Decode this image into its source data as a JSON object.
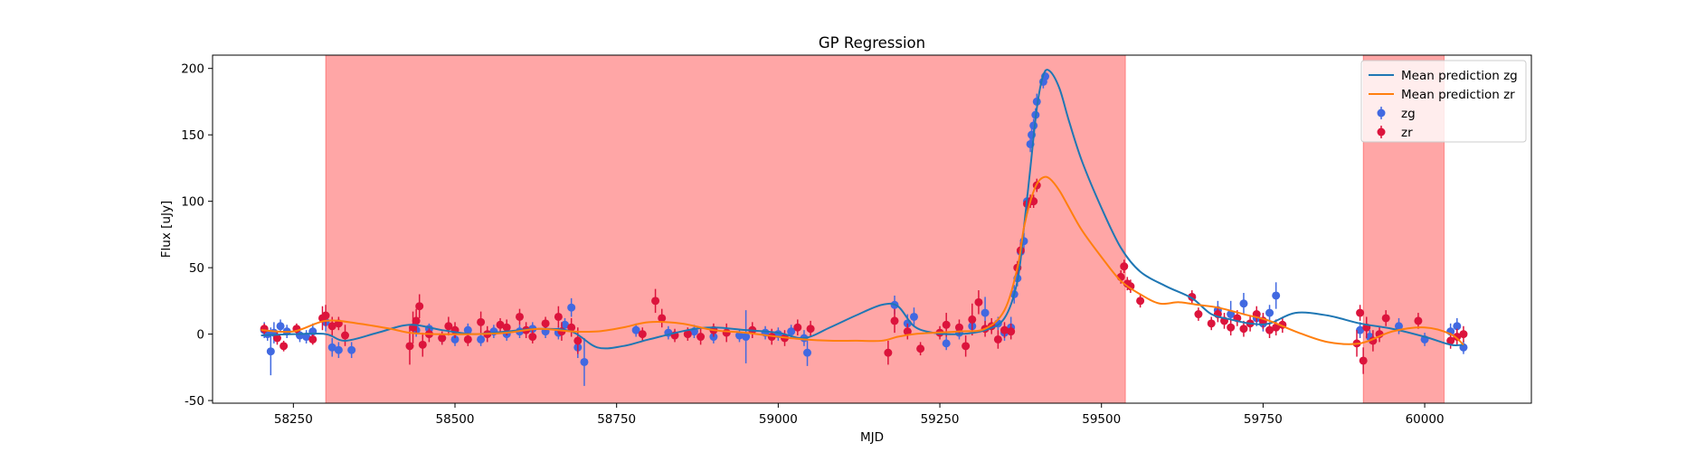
{
  "chart_data": {
    "type": "scatter",
    "title": "GP Regression",
    "xlabel": "MJD",
    "ylabel": "Flux [uJy]",
    "xlim": [
      58125,
      60165
    ],
    "ylim": [
      -52,
      210
    ],
    "xticks": [
      58250,
      58500,
      58750,
      59000,
      59250,
      59500,
      59750,
      60000
    ],
    "yticks": [
      -50,
      0,
      50,
      100,
      150,
      200
    ],
    "legend_location": "top-right",
    "shaded_regions": [
      {
        "x_start": 58300,
        "x_end": 59537,
        "color": "#ff0000",
        "alpha": 0.35
      },
      {
        "x_start": 59905,
        "x_end": 60030,
        "color": "#ff0000",
        "alpha": 0.35
      }
    ],
    "series": [
      {
        "name": "Mean prediction zg",
        "kind": "line",
        "color": "#1f77b4",
        "x": [
          58200,
          58250,
          58300,
          58330,
          58380,
          58430,
          58480,
          58530,
          58580,
          58630,
          58680,
          58720,
          58760,
          58800,
          58860,
          58900,
          58950,
          59000,
          59040,
          59080,
          59120,
          59160,
          59185,
          59210,
          59240,
          59280,
          59320,
          59350,
          59370,
          59380,
          59390,
          59400,
          59410,
          59420,
          59435,
          59450,
          59470,
          59500,
          59530,
          59560,
          59600,
          59640,
          59670,
          59700,
          59730,
          59760,
          59800,
          59850,
          59900,
          59950,
          60000,
          60040,
          60060
        ],
        "y": [
          -1,
          0,
          0,
          -5,
          1,
          7,
          3,
          0,
          2,
          4,
          2,
          -10,
          -9,
          -4,
          3,
          5,
          3,
          1,
          -3,
          5,
          14,
          22,
          21,
          6,
          1,
          0,
          3,
          12,
          40,
          80,
          125,
          170,
          195,
          198,
          185,
          160,
          130,
          95,
          65,
          47,
          36,
          27,
          15,
          11,
          8,
          8,
          16,
          14,
          8,
          4,
          -2,
          -8,
          -8
        ]
      },
      {
        "name": "Mean prediction zr",
        "kind": "line",
        "color": "#ff7f0e",
        "x": [
          58200,
          58250,
          58300,
          58350,
          58400,
          58430,
          58470,
          58530,
          58580,
          58630,
          58680,
          58720,
          58760,
          58800,
          58850,
          58900,
          58950,
          59000,
          59040,
          59080,
          59120,
          59160,
          59185,
          59210,
          59240,
          59280,
          59320,
          59350,
          59370,
          59380,
          59390,
          59400,
          59410,
          59420,
          59435,
          59450,
          59470,
          59500,
          59530,
          59560,
          59590,
          59620,
          59650,
          59680,
          59720,
          59760,
          59800,
          59850,
          59900,
          59950,
          60000,
          60040,
          60060
        ],
        "y": [
          3,
          2,
          10,
          8,
          4,
          1,
          0,
          0,
          1,
          4,
          2,
          2,
          5,
          9,
          8,
          3,
          1,
          -2,
          -4,
          -5,
          -5,
          -5,
          -2,
          0,
          1,
          2,
          4,
          18,
          50,
          80,
          100,
          113,
          118,
          117,
          108,
          95,
          78,
          58,
          40,
          30,
          23,
          24,
          22,
          20,
          15,
          10,
          2,
          -6,
          -7,
          2,
          5,
          0,
          -8
        ]
      },
      {
        "name": "zg",
        "kind": "errorbar",
        "color": "#4169e1",
        "points": [
          [
            58205,
            3,
            6
          ],
          [
            58210,
            0,
            5
          ],
          [
            58215,
            -13,
            18
          ],
          [
            58220,
            1,
            8
          ],
          [
            58230,
            6,
            5
          ],
          [
            58240,
            2,
            5
          ],
          [
            58260,
            -1,
            5
          ],
          [
            58270,
            -2,
            5
          ],
          [
            58280,
            2,
            6
          ],
          [
            58300,
            9,
            7
          ],
          [
            58310,
            -10,
            7
          ],
          [
            58320,
            -12,
            6
          ],
          [
            58340,
            -12,
            6
          ],
          [
            58440,
            3,
            5
          ],
          [
            58460,
            4,
            4
          ],
          [
            58480,
            -3,
            5
          ],
          [
            58500,
            -4,
            5
          ],
          [
            58520,
            3,
            5
          ],
          [
            58540,
            -4,
            5
          ],
          [
            58560,
            2,
            5
          ],
          [
            58580,
            0,
            5
          ],
          [
            58600,
            2,
            5
          ],
          [
            58620,
            4,
            5
          ],
          [
            58640,
            2,
            5
          ],
          [
            58660,
            1,
            5
          ],
          [
            58670,
            7,
            5
          ],
          [
            58680,
            20,
            7
          ],
          [
            58690,
            -10,
            8
          ],
          [
            58700,
            -21,
            18
          ],
          [
            58780,
            3,
            5
          ],
          [
            58830,
            1,
            5
          ],
          [
            58870,
            2,
            5
          ],
          [
            58900,
            -2,
            5
          ],
          [
            58940,
            -1,
            5
          ],
          [
            58950,
            -2,
            20
          ],
          [
            58980,
            1,
            5
          ],
          [
            59000,
            0,
            5
          ],
          [
            59020,
            2,
            5
          ],
          [
            59040,
            -3,
            6
          ],
          [
            59045,
            -14,
            10
          ],
          [
            59180,
            22,
            7
          ],
          [
            59200,
            8,
            7
          ],
          [
            59210,
            13,
            7
          ],
          [
            59260,
            -7,
            5
          ],
          [
            59280,
            1,
            5
          ],
          [
            59300,
            6,
            6
          ],
          [
            59320,
            16,
            12
          ],
          [
            59340,
            8,
            5
          ],
          [
            59350,
            1,
            6
          ],
          [
            59360,
            5,
            8
          ],
          [
            59365,
            30,
            7
          ],
          [
            59370,
            42,
            6
          ],
          [
            59375,
            62,
            6
          ],
          [
            59380,
            70,
            6
          ],
          [
            59385,
            100,
            5
          ],
          [
            59390,
            143,
            6
          ],
          [
            59392,
            150,
            5
          ],
          [
            59395,
            157,
            5
          ],
          [
            59398,
            165,
            5
          ],
          [
            59400,
            175,
            6
          ],
          [
            59410,
            190,
            5
          ],
          [
            59413,
            194,
            5
          ],
          [
            59640,
            28,
            4
          ],
          [
            59680,
            18,
            7
          ],
          [
            59700,
            15,
            10
          ],
          [
            59720,
            23,
            8
          ],
          [
            59740,
            12,
            6
          ],
          [
            59750,
            8,
            6
          ],
          [
            59760,
            16,
            6
          ],
          [
            59770,
            29,
            10
          ],
          [
            59900,
            3,
            6
          ],
          [
            59915,
            -2,
            5
          ],
          [
            59960,
            6,
            6
          ],
          [
            60000,
            -4,
            5
          ],
          [
            60040,
            2,
            6
          ],
          [
            60050,
            6,
            6
          ],
          [
            60060,
            -10,
            5
          ]
        ]
      },
      {
        "name": "zr",
        "kind": "errorbar",
        "color": "#dc143c",
        "points": [
          [
            58205,
            4,
            4
          ],
          [
            58225,
            -3,
            5
          ],
          [
            58235,
            -9,
            4
          ],
          [
            58255,
            4,
            4
          ],
          [
            58280,
            -4,
            4
          ],
          [
            58295,
            12,
            9
          ],
          [
            58300,
            14,
            8
          ],
          [
            58310,
            6,
            7
          ],
          [
            58320,
            8,
            5
          ],
          [
            58330,
            -1,
            8
          ],
          [
            58430,
            -9,
            14
          ],
          [
            58435,
            5,
            12
          ],
          [
            58440,
            10,
            9
          ],
          [
            58445,
            21,
            9
          ],
          [
            58450,
            -8,
            9
          ],
          [
            58460,
            0,
            6
          ],
          [
            58480,
            -3,
            5
          ],
          [
            58490,
            6,
            7
          ],
          [
            58500,
            3,
            6
          ],
          [
            58520,
            -4,
            5
          ],
          [
            58540,
            9,
            8
          ],
          [
            58550,
            0,
            6
          ],
          [
            58570,
            7,
            5
          ],
          [
            58580,
            5,
            6
          ],
          [
            58600,
            13,
            6
          ],
          [
            58610,
            3,
            6
          ],
          [
            58620,
            -2,
            5
          ],
          [
            58640,
            8,
            5
          ],
          [
            58660,
            13,
            8
          ],
          [
            58665,
            2,
            7
          ],
          [
            58680,
            5,
            7
          ],
          [
            58690,
            -5,
            10
          ],
          [
            58790,
            0,
            5
          ],
          [
            58810,
            25,
            9
          ],
          [
            58820,
            12,
            7
          ],
          [
            58840,
            -1,
            5
          ],
          [
            58860,
            0,
            5
          ],
          [
            58880,
            -2,
            6
          ],
          [
            58900,
            3,
            5
          ],
          [
            58920,
            1,
            7
          ],
          [
            58960,
            3,
            6
          ],
          [
            58990,
            -2,
            6
          ],
          [
            59010,
            -3,
            6
          ],
          [
            59030,
            5,
            6
          ],
          [
            59050,
            4,
            6
          ],
          [
            59170,
            -14,
            9
          ],
          [
            59180,
            10,
            9
          ],
          [
            59200,
            2,
            6
          ],
          [
            59220,
            -11,
            5
          ],
          [
            59250,
            1,
            5
          ],
          [
            59260,
            7,
            9
          ],
          [
            59280,
            5,
            6
          ],
          [
            59290,
            -9,
            8
          ],
          [
            59300,
            11,
            12
          ],
          [
            59310,
            24,
            9
          ],
          [
            59320,
            4,
            6
          ],
          [
            59330,
            6,
            6
          ],
          [
            59340,
            -4,
            7
          ],
          [
            59350,
            3,
            6
          ],
          [
            59360,
            2,
            6
          ],
          [
            59370,
            50,
            5
          ],
          [
            59375,
            63,
            6
          ],
          [
            59385,
            98,
            5
          ],
          [
            59390,
            100,
            5
          ],
          [
            59395,
            100,
            5
          ],
          [
            59400,
            112,
            5
          ],
          [
            59530,
            43,
            5
          ],
          [
            59535,
            51,
            5
          ],
          [
            59540,
            38,
            5
          ],
          [
            59545,
            36,
            5
          ],
          [
            59560,
            25,
            5
          ],
          [
            59640,
            28,
            5
          ],
          [
            59650,
            15,
            5
          ],
          [
            59670,
            8,
            5
          ],
          [
            59680,
            15,
            6
          ],
          [
            59690,
            10,
            6
          ],
          [
            59700,
            5,
            6
          ],
          [
            59710,
            12,
            6
          ],
          [
            59720,
            4,
            6
          ],
          [
            59730,
            8,
            6
          ],
          [
            59740,
            15,
            6
          ],
          [
            59750,
            10,
            6
          ],
          [
            59760,
            3,
            6
          ],
          [
            59770,
            5,
            6
          ],
          [
            59780,
            7,
            6
          ],
          [
            59895,
            -7,
            10
          ],
          [
            59900,
            16,
            6
          ],
          [
            59905,
            -20,
            10
          ],
          [
            59910,
            5,
            8
          ],
          [
            59920,
            -5,
            8
          ],
          [
            59930,
            0,
            6
          ],
          [
            59940,
            12,
            6
          ],
          [
            59990,
            10,
            6
          ],
          [
            60040,
            -5,
            6
          ],
          [
            60050,
            -2,
            6
          ],
          [
            60060,
            0,
            6
          ]
        ]
      }
    ]
  }
}
